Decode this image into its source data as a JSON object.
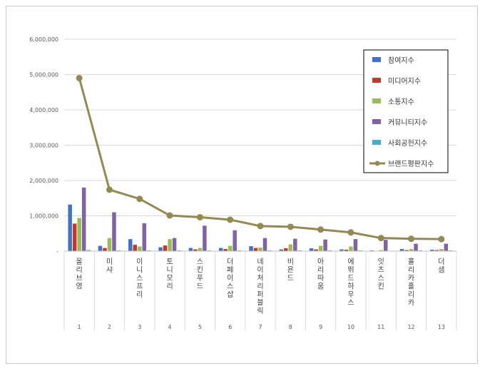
{
  "chart_data": {
    "type": "bar",
    "ylim": [
      0,
      6000000
    ],
    "yticks": [
      "-",
      "1,000,000",
      "2,000,000",
      "3,000,000",
      "4,000,000",
      "5,000,000",
      "6,000,000"
    ],
    "ytick_values": [
      0,
      1000000,
      2000000,
      3000000,
      4000000,
      5000000,
      6000000
    ],
    "grid": true,
    "legend_position": "top-right",
    "categories": [
      "올리브영",
      "미샤",
      "이니스프리",
      "토니모리",
      "스킨푸드",
      "더페이스샵",
      "네이처리퍼블릭",
      "비욘드",
      "아리따움",
      "에뛰드하우스",
      "잇츠스킨",
      "홀리카홀리카",
      "더샘"
    ],
    "indices": [
      "1",
      "2",
      "3",
      "4",
      "5",
      "6",
      "7",
      "8",
      "9",
      "10",
      "11",
      "12",
      "13"
    ],
    "series": [
      {
        "name": "참여지수",
        "kind": "bar",
        "color": "#4472c4",
        "values": [
          1320000,
          150000,
          340000,
          110000,
          90000,
          90000,
          140000,
          50000,
          80000,
          50000,
          20000,
          60000,
          40000
        ]
      },
      {
        "name": "미디어지수",
        "kind": "bar",
        "color": "#c0392b",
        "values": [
          780000,
          90000,
          180000,
          160000,
          50000,
          60000,
          90000,
          80000,
          50000,
          40000,
          10000,
          30000,
          30000
        ]
      },
      {
        "name": "소통지수",
        "kind": "bar",
        "color": "#9bbb59",
        "values": [
          940000,
          370000,
          130000,
          340000,
          90000,
          150000,
          100000,
          190000,
          150000,
          130000,
          30000,
          60000,
          60000
        ]
      },
      {
        "name": "커뮤니티지수",
        "kind": "bar",
        "color": "#8064a2",
        "values": [
          1800000,
          1100000,
          790000,
          370000,
          720000,
          590000,
          370000,
          350000,
          330000,
          340000,
          320000,
          210000,
          210000
        ]
      },
      {
        "name": "사회공헌지수",
        "kind": "bar",
        "color": "#4bacc6",
        "values": [
          30000,
          20000,
          20000,
          20000,
          20000,
          20000,
          20000,
          20000,
          20000,
          20000,
          10000,
          20000,
          20000
        ]
      },
      {
        "name": "브랜드평판지수",
        "kind": "line",
        "color": "#938953",
        "values": [
          4900000,
          1740000,
          1480000,
          1010000,
          960000,
          890000,
          710000,
          690000,
          610000,
          530000,
          370000,
          350000,
          340000
        ]
      }
    ]
  }
}
